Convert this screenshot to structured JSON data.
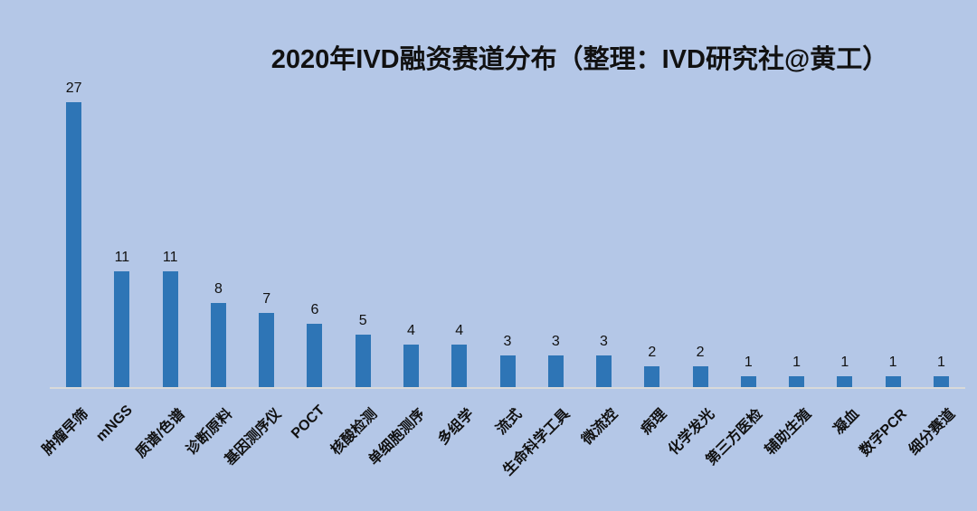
{
  "chart_data": {
    "type": "bar",
    "title": "2020年IVD融资赛道分布（整理：IVD研究社@黄工）",
    "categories": [
      "肿瘤早筛",
      "mNGS",
      "质谱/色谱",
      "诊断原料",
      "基因测序仪",
      "POCT",
      "核酸检测",
      "单细胞测序",
      "多组学",
      "流式",
      "生命科学工具",
      "微流控",
      "病理",
      "化学发光",
      "第三方医检",
      "辅助生殖",
      "凝血",
      "数字PCR",
      "细分赛道"
    ],
    "values": [
      27,
      11,
      11,
      8,
      7,
      6,
      5,
      4,
      4,
      3,
      3,
      3,
      2,
      2,
      1,
      1,
      1,
      1,
      1
    ],
    "xlabel": "",
    "ylabel": "",
    "ylim": [
      0,
      28
    ],
    "grid": false,
    "legend": "none",
    "data_labels": true,
    "colors": {
      "background": "#b4c7e7",
      "bar": "#2e75b6",
      "axis_line": "#d9d9d9",
      "text": "#111111"
    }
  }
}
